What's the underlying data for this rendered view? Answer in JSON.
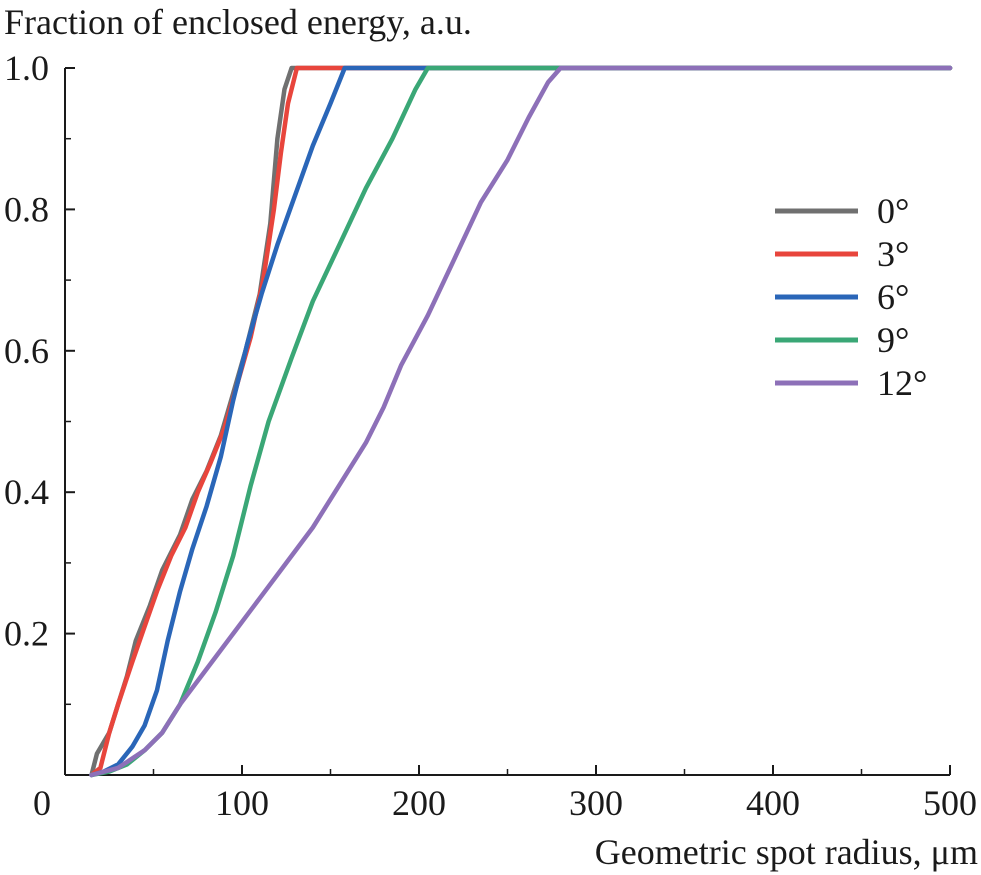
{
  "chart_data": {
    "type": "line",
    "title": "",
    "ylabel": "Fraction of enclosed energy, a.u.",
    "xlabel": "Geometric spot radius, μm",
    "xlim": [
      0,
      500
    ],
    "ylim": [
      0,
      1.0
    ],
    "x_ticks": [
      0,
      100,
      200,
      300,
      400,
      500
    ],
    "x_tick_labels": [
      "0",
      "100",
      "200",
      "300",
      "400",
      "500"
    ],
    "y_ticks": [
      0.2,
      0.4,
      0.6,
      0.8,
      1.0
    ],
    "y_tick_labels": [
      "0.2",
      "0.4",
      "0.6",
      "0.8",
      "1.0"
    ],
    "legend_position": "right",
    "grid": false,
    "series": [
      {
        "name": "0°",
        "color": "#707070",
        "points": [
          [
            15,
            0
          ],
          [
            18,
            0.03
          ],
          [
            25,
            0.06
          ],
          [
            30,
            0.1
          ],
          [
            35,
            0.14
          ],
          [
            40,
            0.19
          ],
          [
            48,
            0.24
          ],
          [
            55,
            0.29
          ],
          [
            65,
            0.34
          ],
          [
            72,
            0.39
          ],
          [
            80,
            0.43
          ],
          [
            88,
            0.48
          ],
          [
            95,
            0.54
          ],
          [
            102,
            0.6
          ],
          [
            110,
            0.68
          ],
          [
            116,
            0.78
          ],
          [
            120,
            0.9
          ],
          [
            124,
            0.97
          ],
          [
            128,
            1.0
          ],
          [
            500,
            1.0
          ]
        ]
      },
      {
        "name": "3°",
        "color": "#e8453c",
        "points": [
          [
            15,
            0
          ],
          [
            20,
            0.01
          ],
          [
            25,
            0.06
          ],
          [
            30,
            0.1
          ],
          [
            38,
            0.16
          ],
          [
            45,
            0.21
          ],
          [
            52,
            0.26
          ],
          [
            60,
            0.31
          ],
          [
            68,
            0.35
          ],
          [
            75,
            0.4
          ],
          [
            82,
            0.44
          ],
          [
            90,
            0.49
          ],
          [
            97,
            0.55
          ],
          [
            105,
            0.62
          ],
          [
            112,
            0.7
          ],
          [
            118,
            0.8
          ],
          [
            122,
            0.88
          ],
          [
            126,
            0.95
          ],
          [
            131,
            1.0
          ],
          [
            500,
            1.0
          ]
        ]
      },
      {
        "name": "6°",
        "color": "#2a66b8",
        "points": [
          [
            15,
            0
          ],
          [
            22,
            0.005
          ],
          [
            30,
            0.015
          ],
          [
            38,
            0.04
          ],
          [
            45,
            0.07
          ],
          [
            52,
            0.12
          ],
          [
            58,
            0.19
          ],
          [
            65,
            0.26
          ],
          [
            72,
            0.32
          ],
          [
            80,
            0.38
          ],
          [
            88,
            0.45
          ],
          [
            95,
            0.53
          ],
          [
            103,
            0.61
          ],
          [
            111,
            0.68
          ],
          [
            120,
            0.75
          ],
          [
            130,
            0.82
          ],
          [
            140,
            0.89
          ],
          [
            150,
            0.95
          ],
          [
            158,
            1.0
          ],
          [
            500,
            1.0
          ]
        ]
      },
      {
        "name": "9°",
        "color": "#3aa776",
        "points": [
          [
            15,
            0
          ],
          [
            25,
            0.005
          ],
          [
            35,
            0.015
          ],
          [
            45,
            0.035
          ],
          [
            55,
            0.06
          ],
          [
            65,
            0.1
          ],
          [
            75,
            0.16
          ],
          [
            85,
            0.23
          ],
          [
            95,
            0.31
          ],
          [
            105,
            0.41
          ],
          [
            115,
            0.5
          ],
          [
            128,
            0.59
          ],
          [
            140,
            0.67
          ],
          [
            155,
            0.75
          ],
          [
            170,
            0.83
          ],
          [
            185,
            0.9
          ],
          [
            198,
            0.97
          ],
          [
            205,
            1.0
          ],
          [
            500,
            1.0
          ]
        ]
      },
      {
        "name": "12°",
        "color": "#8d70b8",
        "points": [
          [
            15,
            0
          ],
          [
            30,
            0.01
          ],
          [
            45,
            0.035
          ],
          [
            55,
            0.06
          ],
          [
            65,
            0.1
          ],
          [
            80,
            0.15
          ],
          [
            95,
            0.2
          ],
          [
            110,
            0.25
          ],
          [
            125,
            0.3
          ],
          [
            140,
            0.35
          ],
          [
            155,
            0.41
          ],
          [
            170,
            0.47
          ],
          [
            180,
            0.52
          ],
          [
            190,
            0.58
          ],
          [
            205,
            0.65
          ],
          [
            220,
            0.73
          ],
          [
            235,
            0.81
          ],
          [
            250,
            0.87
          ],
          [
            262,
            0.93
          ],
          [
            273,
            0.98
          ],
          [
            280,
            1.0
          ],
          [
            500,
            1.0
          ]
        ]
      }
    ]
  }
}
